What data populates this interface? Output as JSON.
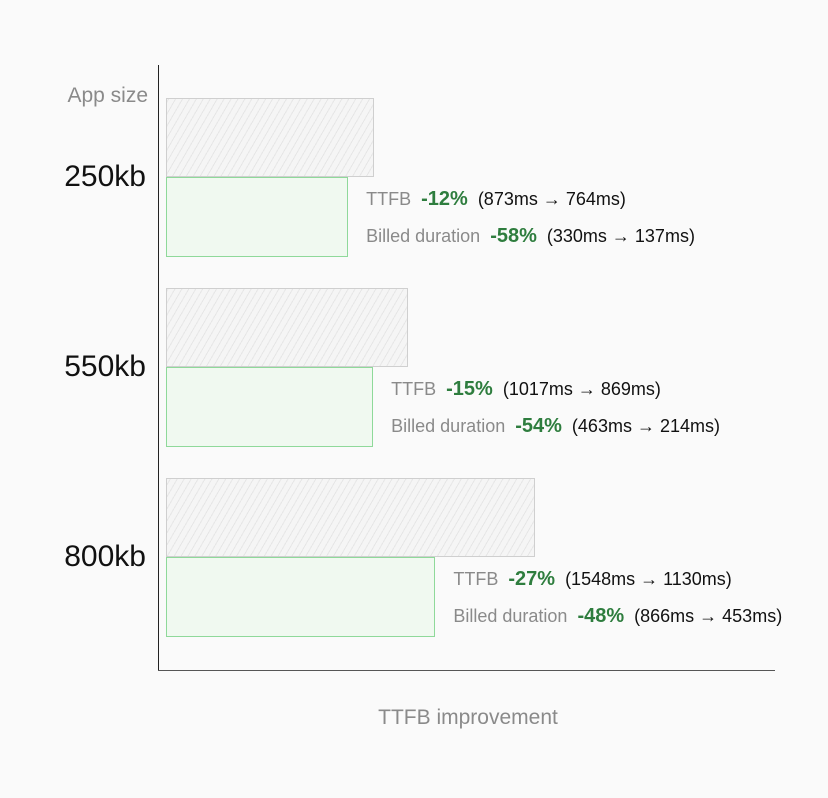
{
  "chart_data": {
    "type": "bar",
    "orientation": "horizontal",
    "ylabel": "App size",
    "xlabel": "TTFB improvement",
    "categories": [
      "250kb",
      "550kb",
      "800kb"
    ],
    "series": [
      {
        "values": [
          873,
          1017,
          1548
        ]
      },
      {
        "values": [
          764,
          869,
          1130
        ]
      }
    ],
    "annotations": [
      {
        "ttfb_label": "TTFB",
        "ttfb_pct": "-12%",
        "ttfb_range": "(873ms → 764ms)",
        "billed_label": "Billed duration",
        "billed_pct": "-58%",
        "billed_range": "(330ms → 137ms)"
      },
      {
        "ttfb_label": "TTFB",
        "ttfb_pct": "-15%",
        "ttfb_range": "(1017ms → 869ms)",
        "billed_label": "Billed duration",
        "billed_pct": "-54%",
        "billed_range": "(463ms → 214ms)"
      },
      {
        "ttfb_label": "TTFB",
        "ttfb_pct": "-27%",
        "ttfb_range": "(1548ms → 1130ms)",
        "billed_label": "Billed duration",
        "billed_pct": "-48%",
        "billed_range": "(866ms → 453ms)"
      }
    ],
    "colors": {
      "before": "#e6e6e6",
      "after": "#f0f9f0",
      "after_border": "#8fd99a",
      "improvement": "#2e7d3e"
    },
    "grid": false
  }
}
